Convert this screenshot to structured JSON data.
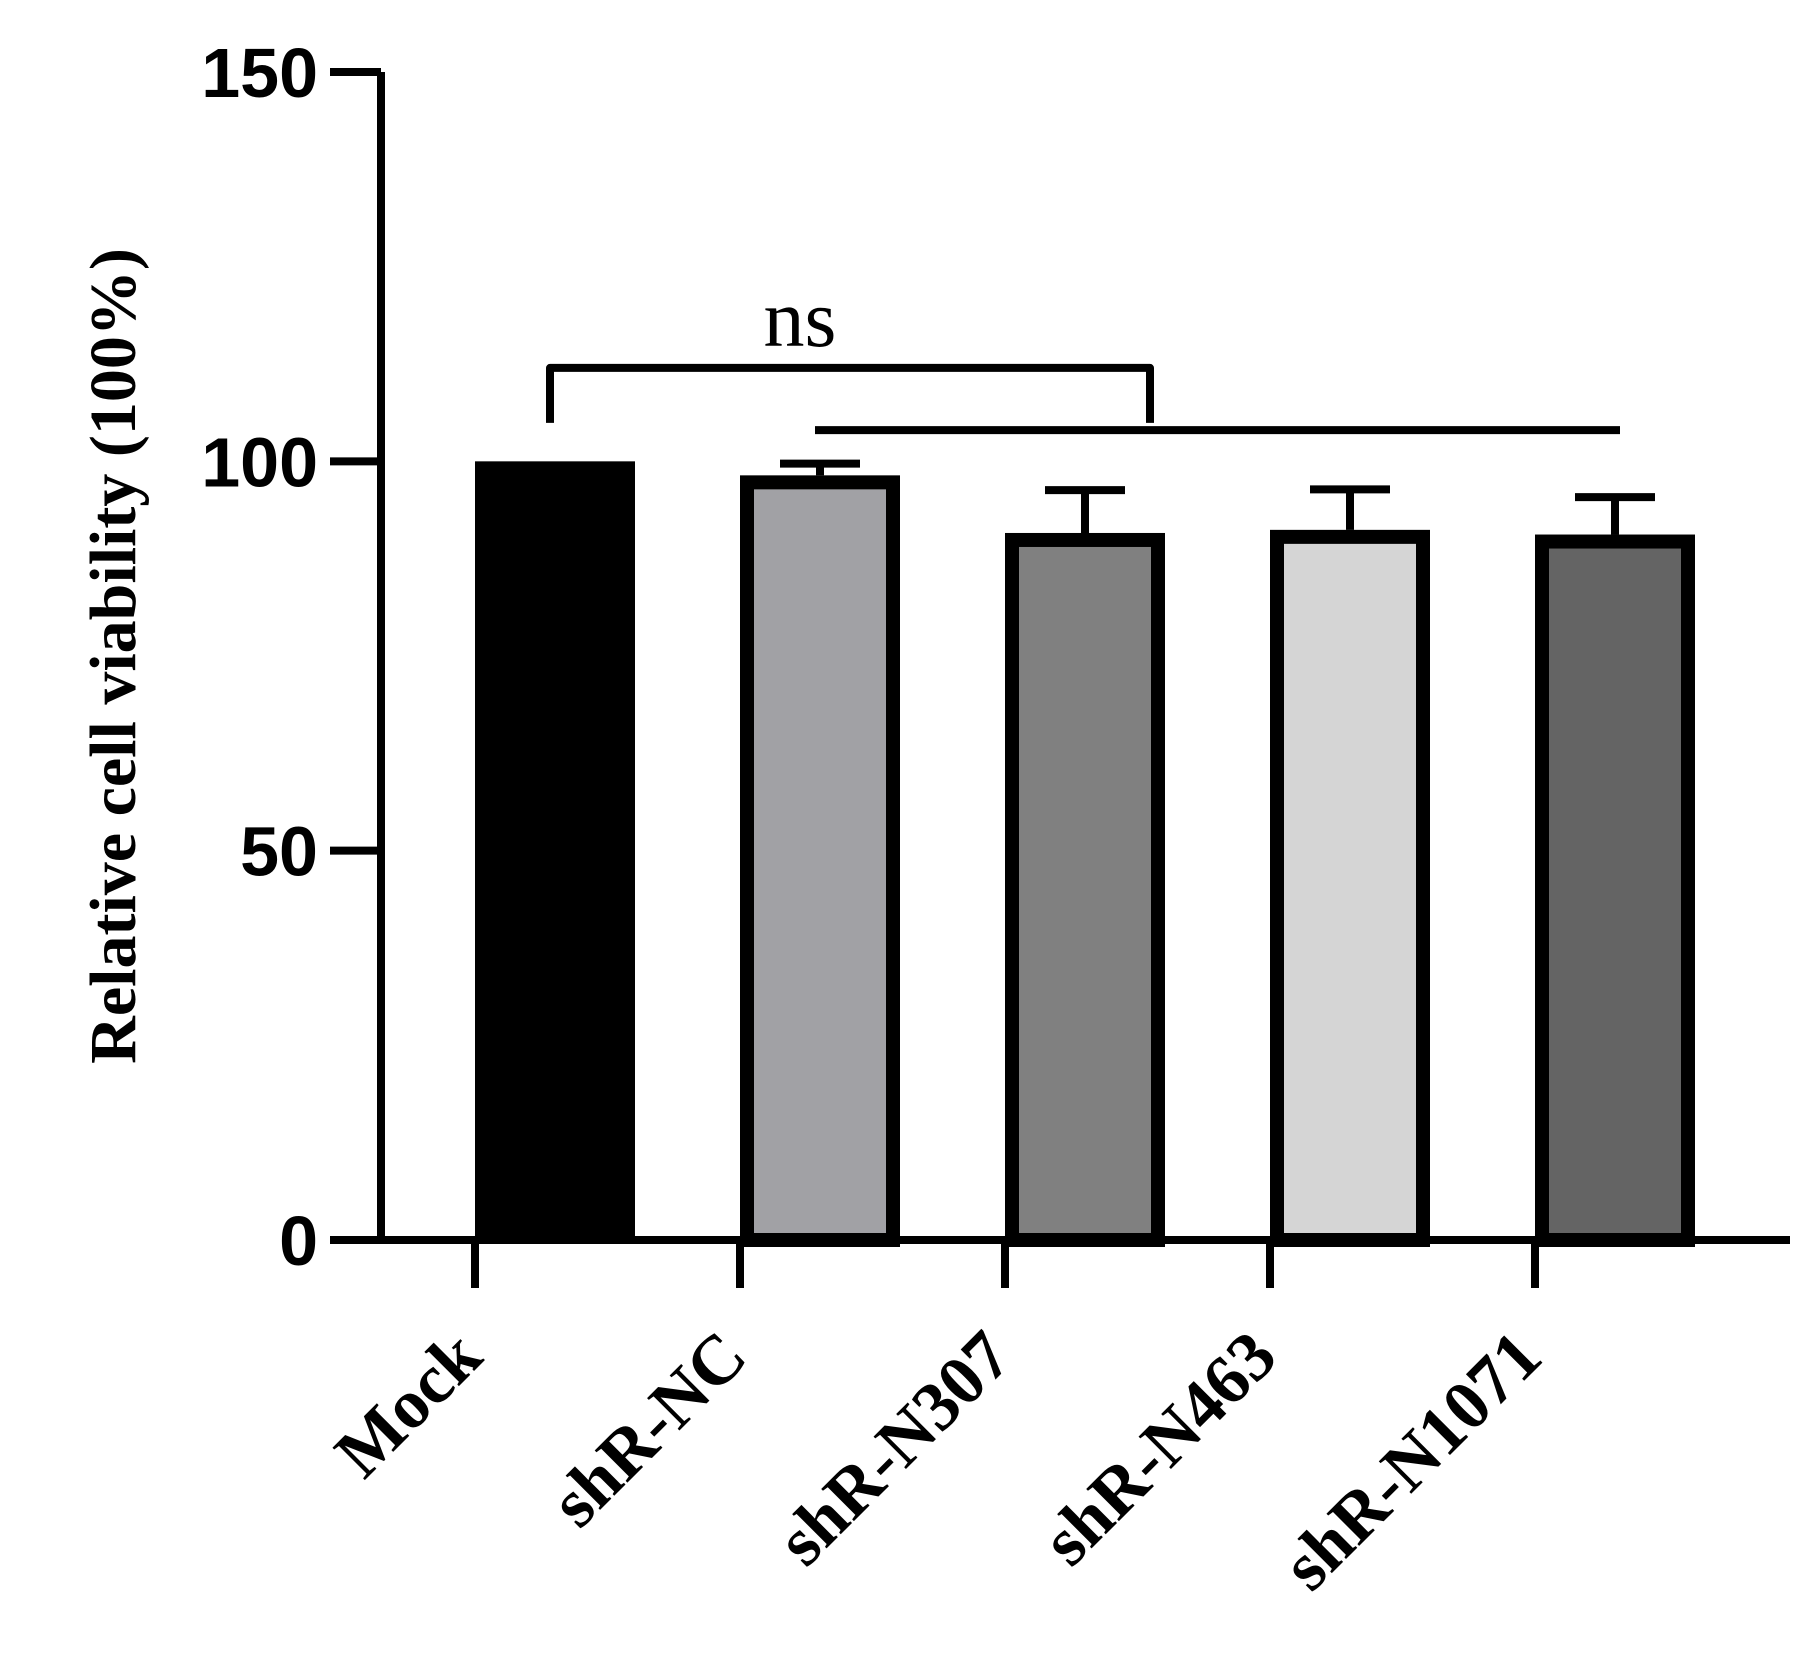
{
  "chart_data": {
    "type": "bar",
    "ylabel": "Relative cell viability (100%)",
    "ylim": [
      0,
      150
    ],
    "yticks": [
      "0",
      "50",
      "100",
      "150"
    ],
    "grid": false,
    "categories": [
      "Mock",
      "shR-NC",
      "shR-N307",
      "shR-N463",
      "shR-N1071"
    ],
    "values": [
      100,
      98.2,
      90.8,
      91.2,
      90.6
    ],
    "errors": [
      0,
      1.5,
      5.5,
      5.2,
      4.8
    ],
    "colors": [
      "#000000",
      "#a1a1a5",
      "#808080",
      "#d5d5d5",
      "#646464"
    ],
    "annotations": [
      {
        "text": "ns",
        "type": "bracket",
        "from": "Mock",
        "to": "shR-N307",
        "level": 112
      },
      {
        "text": "",
        "type": "line",
        "from": "shR-NC",
        "to": "shR-N1071",
        "level": 104
      }
    ]
  }
}
